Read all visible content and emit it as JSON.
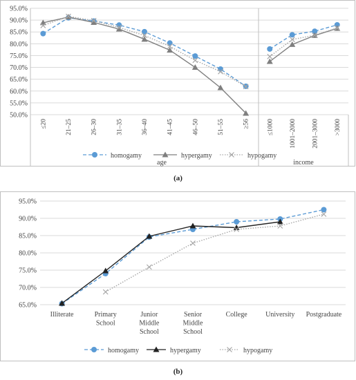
{
  "chart_data": [
    {
      "type": "line",
      "panel_label": "(a)",
      "ylim": [
        50,
        95
      ],
      "yticks": [
        "50.0%",
        "55.0%",
        "60.0%",
        "65.0%",
        "70.0%",
        "75.0%",
        "80.0%",
        "85.0%",
        "90.0%",
        "95.0%"
      ],
      "groups": [
        {
          "label": "age",
          "categories": [
            "≤20",
            "21–25",
            "26–30",
            "31–35",
            "36–40",
            "41–45",
            "46–50",
            "51–55",
            "≥56"
          ]
        },
        {
          "label": "income",
          "categories": [
            "≤1000",
            "1001–2000",
            "2001–3000",
            ">3000"
          ]
        }
      ],
      "series": [
        {
          "name": "homogamy",
          "color": "#5b9bd5",
          "age": [
            84.3,
            91.0,
            89.6,
            87.9,
            85.1,
            80.3,
            74.8,
            69.3,
            62.0
          ],
          "income": [
            77.8,
            83.8,
            85.3,
            88.0
          ]
        },
        {
          "name": "hypergamy",
          "color": "#7f7f7f",
          "age": [
            88.9,
            91.3,
            89.0,
            86.2,
            81.9,
            77.3,
            70.0,
            61.4,
            50.6
          ],
          "income": [
            72.5,
            79.7,
            83.5,
            86.5
          ]
        },
        {
          "name": "hypogamy",
          "color": "#a6a6a6",
          "age": [
            87.7,
            91.6,
            89.8,
            86.9,
            83.5,
            78.9,
            73.0,
            68.2,
            61.9
          ],
          "income": [
            74.6,
            81.8,
            83.6,
            86.7
          ]
        }
      ],
      "legend": "bottom"
    },
    {
      "type": "line",
      "panel_label": "(b)",
      "ylim": [
        65,
        95
      ],
      "yticks": [
        "65.0%",
        "70.0%",
        "75.0%",
        "80.0%",
        "85.0%",
        "90.0%",
        "95.0%"
      ],
      "categories": [
        [
          "Illiterate"
        ],
        [
          "Primary",
          "School"
        ],
        [
          "Junior",
          "Middle",
          "School"
        ],
        [
          "Senior",
          "Middle",
          "School"
        ],
        [
          "College"
        ],
        [
          "University"
        ],
        [
          "Postgraduate"
        ]
      ],
      "series": [
        {
          "name": "homogamy",
          "color": "#5b9bd5",
          "values": [
            65.3,
            74.0,
            84.6,
            86.8,
            89.0,
            89.8,
            92.5
          ]
        },
        {
          "name": "hypergamy",
          "color": "#222222",
          "values": [
            65.4,
            74.8,
            84.8,
            87.8,
            87.3,
            89.0,
            null
          ]
        },
        {
          "name": "hypogamy",
          "color": "#a6a6a6",
          "values": [
            null,
            68.7,
            75.9,
            82.8,
            86.8,
            87.8,
            91.2
          ]
        }
      ],
      "legend": "bottom"
    }
  ]
}
